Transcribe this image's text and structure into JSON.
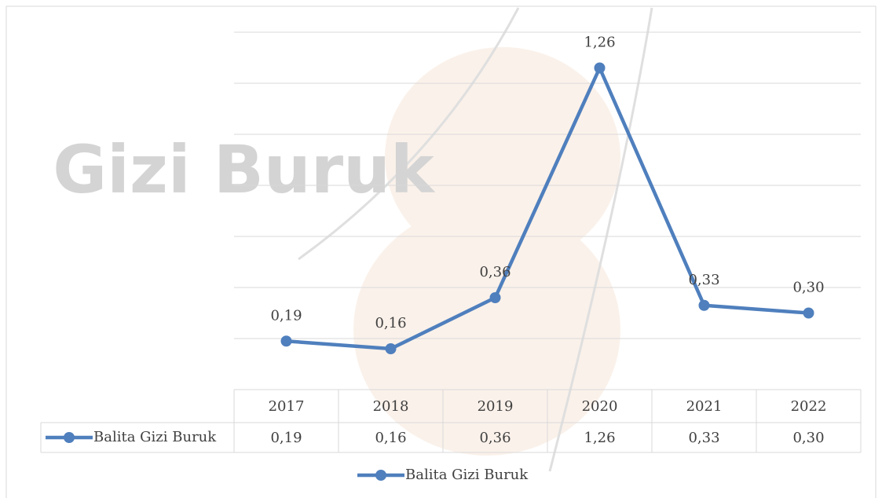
{
  "chart_data": {
    "type": "line",
    "watermark": "Gizi Buruk",
    "categories": [
      "2017",
      "2018",
      "2019",
      "2020",
      "2021",
      "2022"
    ],
    "series": [
      {
        "name": "Balita Gizi Buruk",
        "color": "#4f7fbd",
        "values": [
          0.19,
          0.16,
          0.36,
          1.26,
          0.33,
          0.3
        ],
        "value_labels": [
          "0,19",
          "0,16",
          "0,36",
          "1,26",
          "0,33",
          "0,30"
        ]
      }
    ],
    "ylim": [
      0,
      1.4
    ],
    "yticks": [
      0,
      0.2,
      0.4,
      0.6,
      0.8,
      1.0,
      1.2,
      1.4
    ],
    "grid": true
  }
}
